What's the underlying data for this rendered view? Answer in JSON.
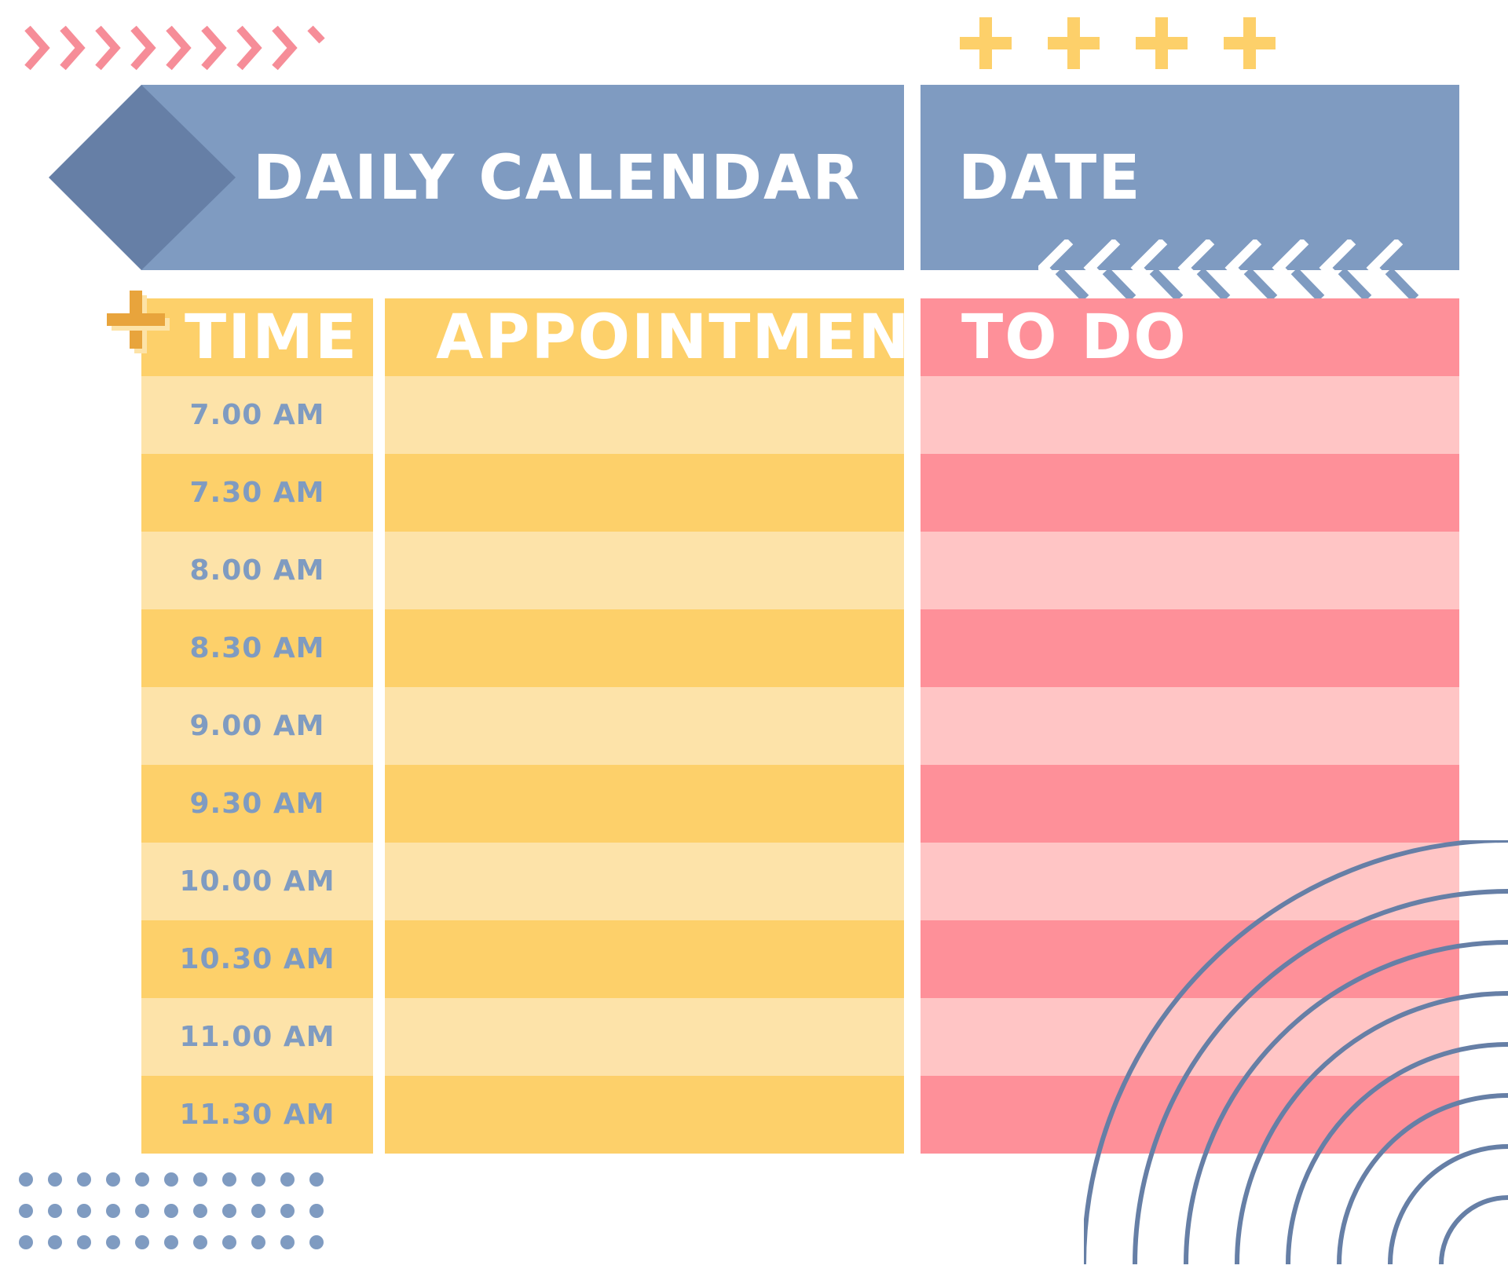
{
  "header": {
    "title": "DAILY CALENDAR",
    "date_label": "DATE"
  },
  "columns": {
    "time": "TIME",
    "appointment": "APPOINTMENT",
    "todo": "TO DO"
  },
  "rows": [
    {
      "time": "7.00 AM"
    },
    {
      "time": "7.30 AM"
    },
    {
      "time": "8.00 AM"
    },
    {
      "time": "8.30 AM"
    },
    {
      "time": "9.00 AM"
    },
    {
      "time": "9.30 AM"
    },
    {
      "time": "10.00 AM"
    },
    {
      "time": "10.30 AM"
    },
    {
      "time": "11.00 AM"
    },
    {
      "time": "11.30 AM"
    }
  ],
  "colors": {
    "blue": "#7F9BC1",
    "blue_dark": "#667FA6",
    "yellow": "#FDD06A",
    "yellow_light": "#FDE3A9",
    "pink": "#FE9099",
    "pink_light": "#FFC5C5",
    "chevron_pink": "#F68D98"
  }
}
